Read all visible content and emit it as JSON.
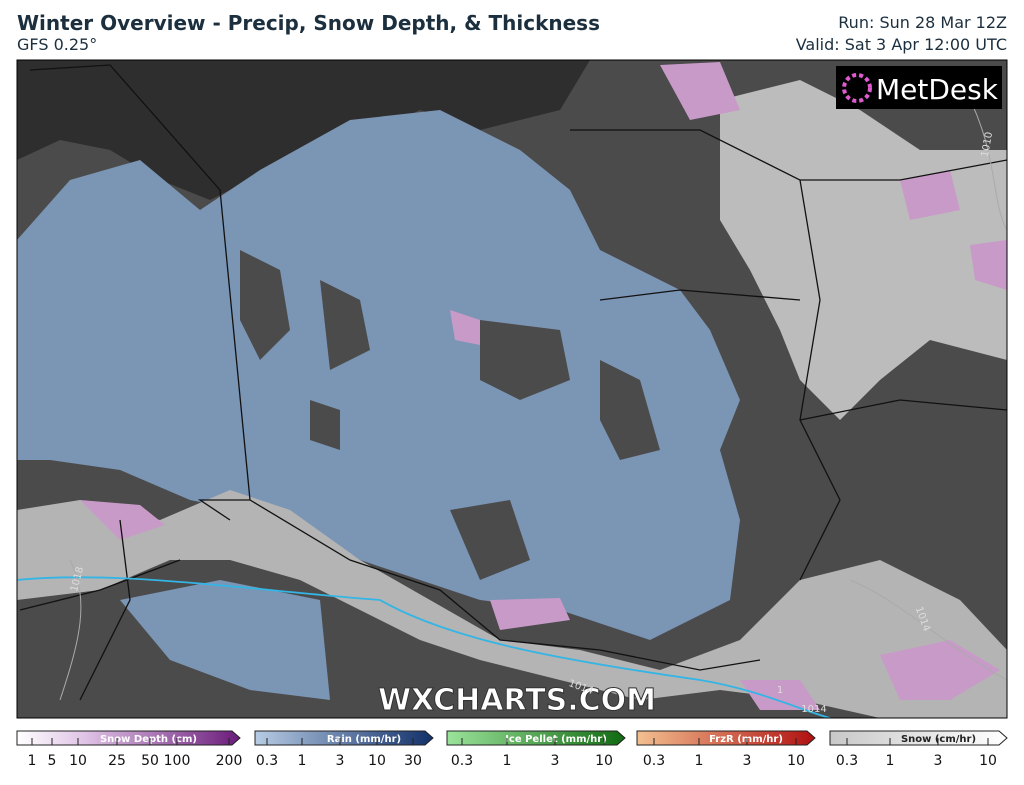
{
  "header": {
    "title": "Winter Overview - Precip, Snow Depth, & Thickness",
    "subtitle": "GFS 0.25°",
    "run": "Run: Sun 28 Mar 12Z",
    "valid": "Valid: Sat 3 Apr 12:00 UTC"
  },
  "map": {
    "logo": "MetDesk",
    "watermark": "WXCHARTS.COM",
    "isobar_labels": [
      "1010",
      "1014",
      "1018",
      "1014",
      "1014",
      "1"
    ]
  },
  "legend": [
    {
      "title": "Snow Depth (cm)",
      "ticks": [
        "1",
        "5",
        "10",
        "25",
        "50",
        "100",
        "200"
      ]
    },
    {
      "title": "Rain (mm/hr)",
      "ticks": [
        "0.3",
        "1",
        "3",
        "10",
        "30"
      ]
    },
    {
      "title": "Ice Pellet (mm/hr)",
      "ticks": [
        "0.3",
        "1",
        "3",
        "10"
      ]
    },
    {
      "title": "FrzR (mm/hr)",
      "ticks": [
        "0.3",
        "1",
        "3",
        "10"
      ]
    },
    {
      "title": "Snow (cm/hr)",
      "ticks": [
        "0.3",
        "1",
        "3",
        "10"
      ]
    }
  ]
}
